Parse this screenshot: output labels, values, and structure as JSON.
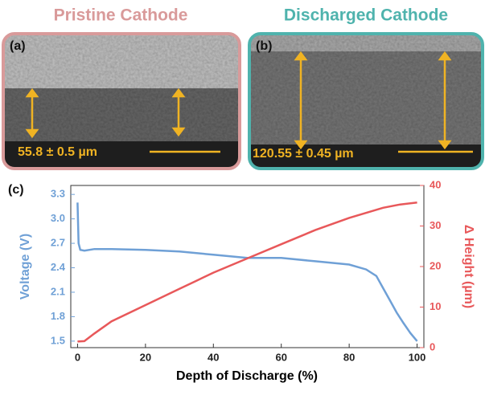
{
  "panels": [
    {
      "title": "Pristine Cathode",
      "label": "(a)",
      "measurement": "55.8 ± 0.5 µm"
    },
    {
      "title": "Discharged Cathode",
      "label": "(b)",
      "measurement": "120.55 ± 0.45 µm"
    }
  ],
  "chart_data": {
    "type": "line",
    "label": "(c)",
    "x_label": "Depth of Discharge (%)",
    "y_label": "Voltage (V)",
    "y2_label": "Δ Height (µm)",
    "xlim": [
      -2,
      102
    ],
    "xticks": [
      0,
      20,
      40,
      60,
      80,
      100
    ],
    "ylim": [
      1.42,
      3.41
    ],
    "yticks": [
      1.5,
      1.8,
      2.1,
      2.4,
      2.7,
      {
        "value": 3,
        "label": "3.0"
      },
      3.3
    ],
    "y2lim": [
      0,
      40
    ],
    "y2ticks": [
      0,
      10,
      20,
      30,
      40
    ],
    "series": [
      {
        "name": "Voltage (V)",
        "color": "#6fa0d6",
        "x": [
          0,
          0.3,
          0.8,
          2,
          5,
          10,
          20,
          30,
          40,
          50,
          60,
          70,
          80,
          85,
          88,
          90,
          92,
          94,
          96,
          98,
          100
        ],
        "values": [
          3.2,
          2.7,
          2.62,
          2.61,
          2.63,
          2.63,
          2.62,
          2.6,
          2.56,
          2.52,
          2.52,
          2.48,
          2.44,
          2.38,
          2.3,
          2.15,
          2.0,
          1.85,
          1.72,
          1.6,
          1.5
        ]
      },
      {
        "name": "Δ Height (µm)",
        "color": "#e8585a",
        "axis": "y2",
        "x": [
          0,
          2,
          5,
          10,
          20,
          30,
          35,
          40,
          50,
          60,
          70,
          80,
          90,
          95,
          100
        ],
        "values": [
          1.5,
          1.6,
          3.5,
          6.5,
          10.5,
          14.5,
          16.5,
          18.5,
          22,
          25.5,
          29,
          32,
          34.5,
          35.3,
          35.8
        ]
      }
    ]
  }
}
